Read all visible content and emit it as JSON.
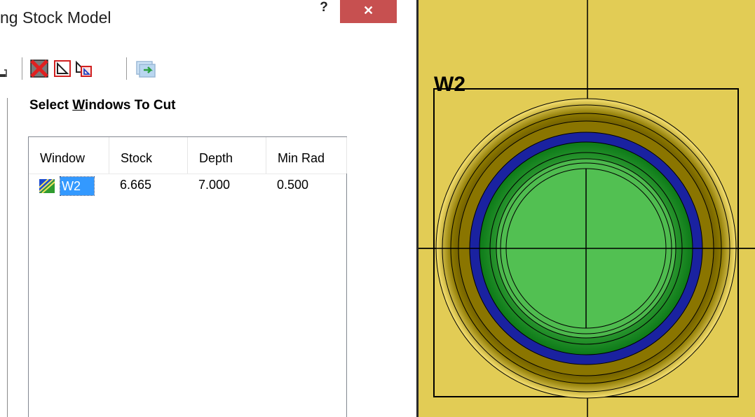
{
  "dialog": {
    "title": "ng Stock Model",
    "help_label": "?",
    "close_label": "✕",
    "toolbar": {
      "icons": [
        "view-mode-icon",
        "delete-icon",
        "new-window-icon",
        "copy-window-icon",
        "refresh-icon"
      ]
    },
    "section_label_pre": "Select ",
    "section_label_u": "W",
    "section_label_post": "indows To Cut",
    "list": {
      "columns": [
        "Window",
        "Stock",
        "Depth",
        "Min Rad"
      ],
      "rows": [
        {
          "name": "W2",
          "stock": "6.665",
          "depth": "7.000",
          "min_rad": "0.500"
        }
      ]
    }
  },
  "viewport": {
    "window_label": "W2",
    "colors": {
      "background": "#e2cc55",
      "outer_gold": "#8c7800",
      "blue_ring": "#1a22a0",
      "green_ring": "#22a43a",
      "inner_green": "#5ac45a"
    }
  }
}
